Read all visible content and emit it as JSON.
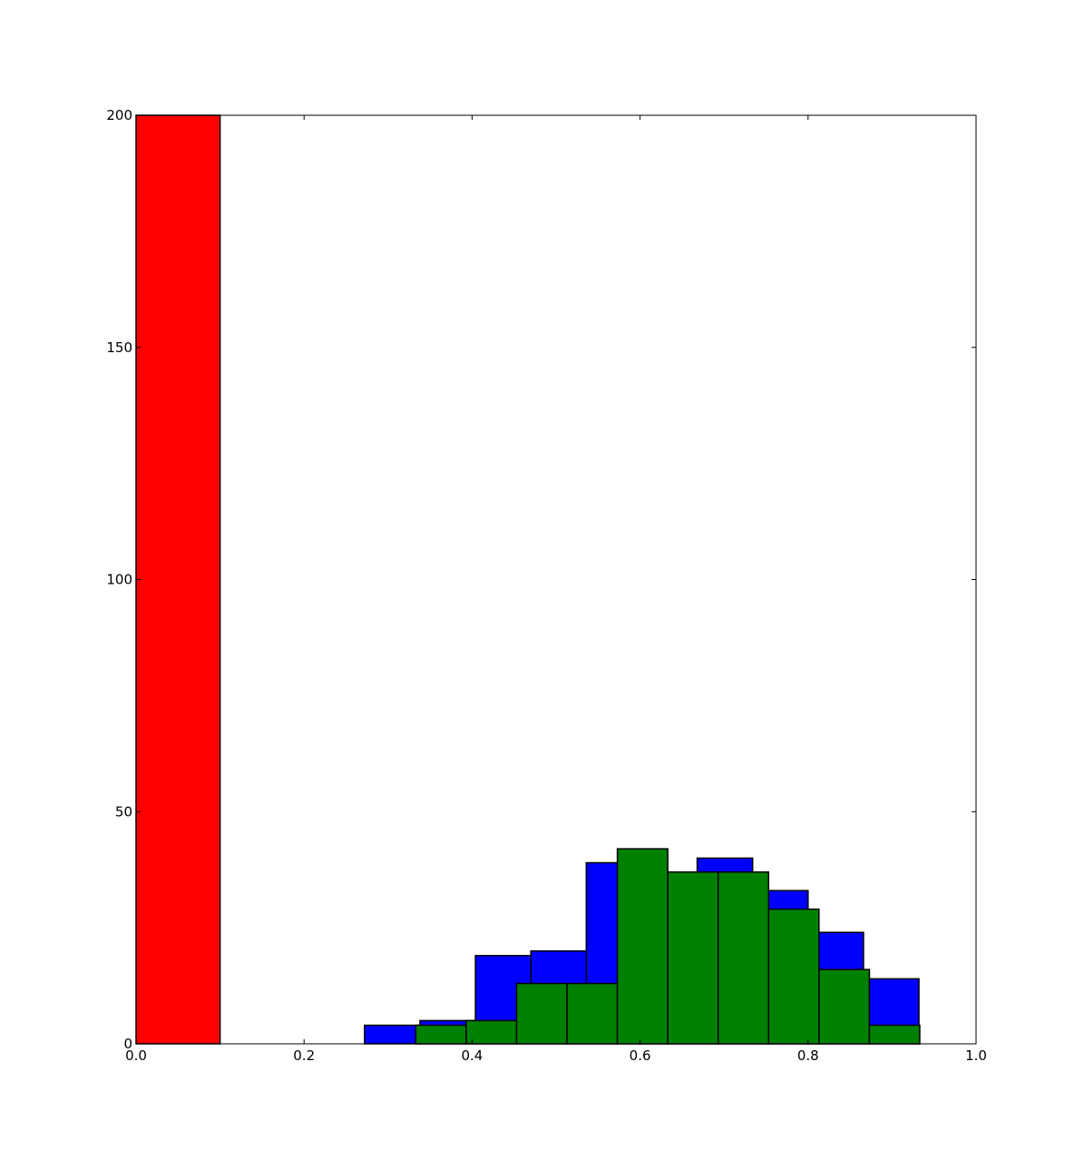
{
  "chart_data": {
    "type": "bar",
    "title": "",
    "xlabel": "",
    "ylabel": "",
    "xlim": [
      0.0,
      1.0
    ],
    "ylim": [
      0,
      200
    ],
    "grid": false,
    "x_ticks": [
      {
        "value": 0.0,
        "label": "0.0"
      },
      {
        "value": 0.2,
        "label": "0.2"
      },
      {
        "value": 0.4,
        "label": "0.4"
      },
      {
        "value": 0.6,
        "label": "0.6"
      },
      {
        "value": 0.8,
        "label": "0.8"
      },
      {
        "value": 1.0,
        "label": "1.0"
      }
    ],
    "y_ticks": [
      {
        "value": 0,
        "label": "0"
      },
      {
        "value": 50,
        "label": "50"
      },
      {
        "value": 100,
        "label": "100"
      },
      {
        "value": 150,
        "label": "150"
      },
      {
        "value": 200,
        "label": "200"
      }
    ],
    "series": [
      {
        "color": "#ff0000",
        "bins": [
          {
            "x0": 0.0,
            "x1": 0.1,
            "count": 200
          }
        ]
      },
      {
        "color": "#0000ff",
        "bins": [
          {
            "x0": 0.272,
            "x1": 0.338,
            "count": 4
          },
          {
            "x0": 0.338,
            "x1": 0.404,
            "count": 5
          },
          {
            "x0": 0.404,
            "x1": 0.47,
            "count": 19
          },
          {
            "x0": 0.47,
            "x1": 0.536,
            "count": 20
          },
          {
            "x0": 0.536,
            "x1": 0.602,
            "count": 39
          },
          {
            "x0": 0.602,
            "x1": 0.668,
            "count": 37
          },
          {
            "x0": 0.668,
            "x1": 0.734,
            "count": 40
          },
          {
            "x0": 0.734,
            "x1": 0.8,
            "count": 33
          },
          {
            "x0": 0.8,
            "x1": 0.866,
            "count": 24
          },
          {
            "x0": 0.866,
            "x1": 0.932,
            "count": 14
          }
        ]
      },
      {
        "color": "#008000",
        "bins": [
          {
            "x0": 0.333,
            "x1": 0.393,
            "count": 4
          },
          {
            "x0": 0.393,
            "x1": 0.453,
            "count": 5
          },
          {
            "x0": 0.453,
            "x1": 0.513,
            "count": 13
          },
          {
            "x0": 0.513,
            "x1": 0.573,
            "count": 13
          },
          {
            "x0": 0.573,
            "x1": 0.633,
            "count": 42
          },
          {
            "x0": 0.633,
            "x1": 0.693,
            "count": 37
          },
          {
            "x0": 0.693,
            "x1": 0.753,
            "count": 37
          },
          {
            "x0": 0.753,
            "x1": 0.813,
            "count": 29
          },
          {
            "x0": 0.813,
            "x1": 0.873,
            "count": 16
          },
          {
            "x0": 0.873,
            "x1": 0.933,
            "count": 4
          }
        ]
      }
    ]
  }
}
